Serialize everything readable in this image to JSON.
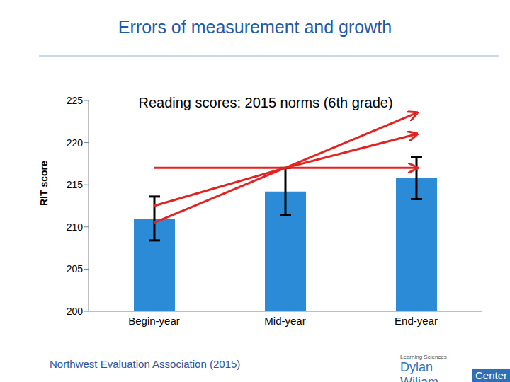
{
  "chart_data": {
    "type": "bar",
    "title": "Errors of measurement and growth",
    "subtitle": "Reading scores: 2015 norms (6th grade)",
    "y_label": "RIT score",
    "categories": [
      "Begin-year",
      "Mid-year",
      "End-year"
    ],
    "values": [
      211,
      214.2,
      215.8
    ],
    "errors": [
      2.6,
      2.8,
      2.5
    ],
    "color": "#2b8bd6",
    "ylim": [
      200,
      225
    ],
    "yticks": [
      200,
      205,
      210,
      215,
      220,
      225
    ],
    "grid": false,
    "trend_lines": [
      {
        "color": "#e3231f",
        "values": [
          210.5,
          217,
          223.5
        ]
      },
      {
        "color": "#e3231f",
        "values": [
          212.5,
          217,
          221
        ]
      },
      {
        "color": "#e3231f",
        "values": [
          217,
          217,
          217
        ]
      }
    ],
    "source": "Northwest Evaluation Association (2015)",
    "logo": {
      "top": "Learning Sciences",
      "name": "Dylan Wiliam",
      "suffix": "Center"
    }
  }
}
